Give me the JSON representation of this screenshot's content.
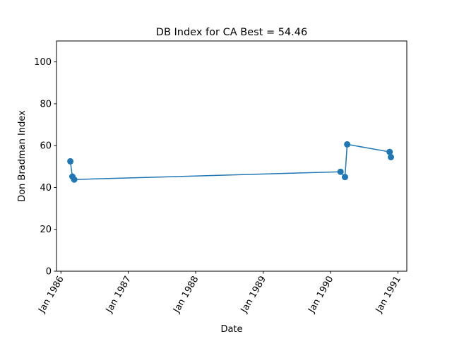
{
  "chart_data": {
    "type": "line",
    "title": "DB Index for CA Best = 54.46",
    "xlabel": "Date",
    "ylabel": "Don Bradman Index",
    "x_type": "date",
    "xlim": [
      "1985-12-08",
      "1991-02-18"
    ],
    "ylim": [
      0,
      110
    ],
    "y_ticks": [
      0,
      20,
      40,
      60,
      80,
      100
    ],
    "x_ticks": [
      {
        "date": "1986-01-01",
        "label": "Jan 1986"
      },
      {
        "date": "1987-01-01",
        "label": "Jan 1987"
      },
      {
        "date": "1988-01-01",
        "label": "Jan 1988"
      },
      {
        "date": "1989-01-01",
        "label": "Jan 1989"
      },
      {
        "date": "1990-01-01",
        "label": "Jan 1990"
      },
      {
        "date": "1991-01-01",
        "label": "Jan 1991"
      }
    ],
    "grid": false,
    "legend": "none",
    "series": [
      {
        "color": "#1f77b4",
        "marker": "circle",
        "points": [
          {
            "x": "1986-02-21",
            "y": 52.5
          },
          {
            "x": "1986-03-04",
            "y": 45.2
          },
          {
            "x": "1986-03-14",
            "y": 43.8
          },
          {
            "x": "1990-02-24",
            "y": 47.5
          },
          {
            "x": "1990-03-20",
            "y": 45.0
          },
          {
            "x": "1990-04-01",
            "y": 60.6
          },
          {
            "x": "1990-11-17",
            "y": 57.0
          },
          {
            "x": "1990-11-24",
            "y": 54.5
          }
        ]
      }
    ]
  }
}
